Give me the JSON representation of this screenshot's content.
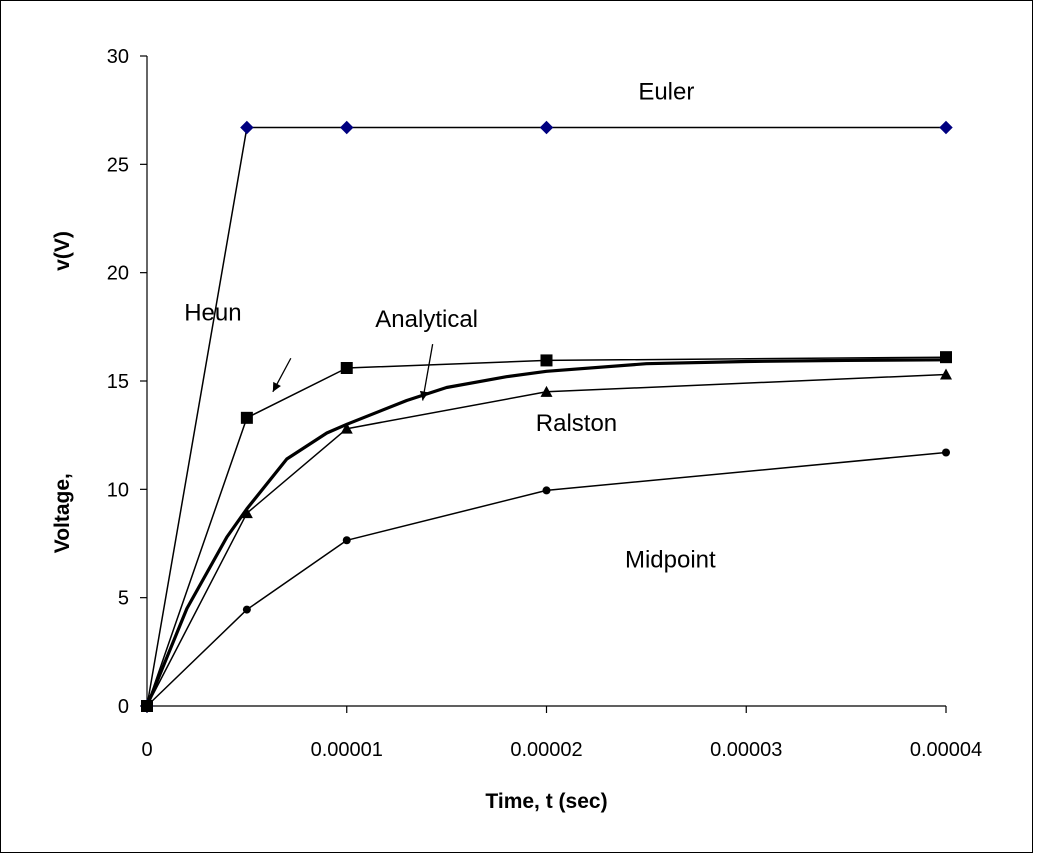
{
  "chart_data": {
    "type": "line",
    "title": "",
    "xlabel": "Time, t (sec)",
    "ylabel": "Voltage, v(V)",
    "ylabel_parts": [
      "Voltage,",
      "v(V)"
    ],
    "xlim": [
      0,
      4e-05
    ],
    "ylim": [
      0,
      30
    ],
    "x_ticks": [
      0,
      1e-05,
      2e-05,
      3e-05,
      4e-05
    ],
    "x_tick_labels": [
      "0",
      "0.00001",
      "0.00002",
      "0.00003",
      "0.00004"
    ],
    "y_ticks": [
      0,
      5,
      10,
      15,
      20,
      25,
      30
    ],
    "y_tick_labels": [
      "0",
      "5",
      "10",
      "15",
      "20",
      "25",
      "30"
    ],
    "grid": false,
    "legend": "none",
    "series": [
      {
        "name": "Euler",
        "marker": "diamond",
        "color": "#000080",
        "x": [
          0,
          5e-06,
          1e-05,
          2e-05,
          4e-05
        ],
        "y": [
          0,
          26.7,
          26.7,
          26.7,
          26.7
        ]
      },
      {
        "name": "Heun",
        "marker": "square",
        "color": "#000000",
        "x": [
          0,
          5e-06,
          1e-05,
          2e-05,
          4e-05
        ],
        "y": [
          0,
          13.3,
          15.6,
          15.95,
          16.1
        ]
      },
      {
        "name": "Analytical",
        "marker": "none",
        "color": "#000000",
        "thick": true,
        "x": [
          0,
          2e-06,
          4e-06,
          5e-06,
          7e-06,
          9e-06,
          1e-05,
          1.3e-05,
          1.5e-05,
          1.8e-05,
          2e-05,
          2.5e-05,
          3e-05,
          3.5e-05,
          4e-05
        ],
        "y": [
          0,
          4.5,
          7.8,
          9.1,
          11.4,
          12.6,
          13.0,
          14.1,
          14.7,
          15.2,
          15.45,
          15.8,
          15.9,
          15.95,
          15.98
        ]
      },
      {
        "name": "Ralston",
        "marker": "triangle",
        "color": "#000000",
        "x": [
          0,
          5e-06,
          1e-05,
          2e-05,
          4e-05
        ],
        "y": [
          0,
          8.9,
          12.8,
          14.5,
          15.3
        ]
      },
      {
        "name": "Midpoint",
        "marker": "circle",
        "color": "#000000",
        "x": [
          0,
          5e-06,
          1e-05,
          2e-05,
          4e-05
        ],
        "y": [
          0,
          4.45,
          7.65,
          9.95,
          11.7
        ]
      }
    ],
    "annotations": [
      {
        "text": "Euler",
        "x": 2.6e-05,
        "y": 28.0
      },
      {
        "text": "Heun",
        "x": 3.3e-06,
        "y": 17.8
      },
      {
        "text": "Analytical",
        "x": 1.4e-05,
        "y": 17.5
      },
      {
        "text": "Ralston",
        "x": 2.15e-05,
        "y": 12.7
      },
      {
        "text": "Midpoint",
        "x": 2.62e-05,
        "y": 6.4
      }
    ],
    "arrows": [
      {
        "from": [
          7.2e-06,
          16.05
        ],
        "to": [
          6.3e-06,
          14.5
        ]
      },
      {
        "from": [
          1.43e-05,
          16.7
        ],
        "to": [
          1.38e-05,
          14.1
        ]
      }
    ]
  }
}
